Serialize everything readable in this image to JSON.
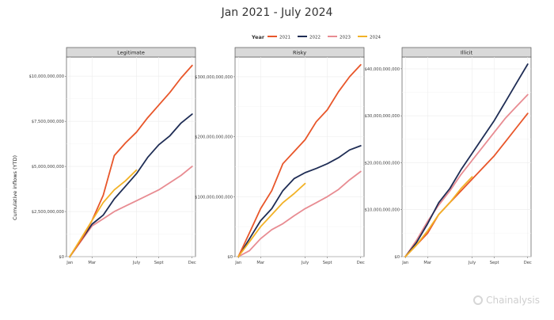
{
  "title": "Jan 2021 - July 2024",
  "legend": {
    "title": "Year",
    "placement": "top",
    "items": [
      {
        "label": "2021",
        "color": "#e8562a"
      },
      {
        "label": "2022",
        "color": "#1f2d55"
      },
      {
        "label": "2023",
        "color": "#e88c92"
      },
      {
        "label": "2024",
        "color": "#f2b227"
      }
    ]
  },
  "ylabel": "Cumulative inflows (YTD)",
  "watermark": "Chainalysis",
  "chart_data": [
    {
      "type": "line",
      "panel": "Legitimate",
      "ylabel": "Cumulative inflows (YTD)",
      "ylim": [
        0,
        10800000000
      ],
      "yticks": [
        0,
        2500000000,
        5000000000,
        7500000000,
        10000000000
      ],
      "ytick_labels": [
        "$0",
        "$2,500,000,000",
        "$5,000,000,000",
        "$7,500,000,000",
        "$10,000,000,000"
      ],
      "xticks": [
        1,
        3,
        7,
        9,
        12
      ],
      "xtick_labels": [
        "Jan",
        "Mar",
        "July",
        "Sept",
        "Dec"
      ],
      "grid": true,
      "series": [
        {
          "name": "2021",
          "color": "#e8562a",
          "x": [
            1,
            2,
            3,
            4,
            5,
            6,
            7,
            8,
            9,
            10,
            11,
            12
          ],
          "values": [
            0,
            900000000,
            2000000000,
            3400000000,
            5600000000,
            6300000000,
            6900000000,
            7700000000,
            8400000000,
            9100000000,
            9900000000,
            10600000000
          ]
        },
        {
          "name": "2022",
          "color": "#1f2d55",
          "x": [
            1,
            2,
            3,
            4,
            5,
            6,
            7,
            8,
            9,
            10,
            11,
            12
          ],
          "values": [
            0,
            900000000,
            1800000000,
            2300000000,
            3200000000,
            3900000000,
            4600000000,
            5500000000,
            6200000000,
            6700000000,
            7400000000,
            7900000000
          ]
        },
        {
          "name": "2023",
          "color": "#e88c92",
          "x": [
            1,
            2,
            3,
            4,
            5,
            6,
            7,
            8,
            9,
            10,
            11,
            12
          ],
          "values": [
            0,
            850000000,
            1700000000,
            2100000000,
            2500000000,
            2800000000,
            3100000000,
            3400000000,
            3700000000,
            4100000000,
            4500000000,
            5000000000
          ]
        },
        {
          "name": "2024",
          "color": "#f2b227",
          "x": [
            1,
            2,
            3,
            4,
            5,
            6,
            7
          ],
          "values": [
            0,
            1000000000,
            2000000000,
            3000000000,
            3700000000,
            4200000000,
            4800000000
          ]
        }
      ]
    },
    {
      "type": "line",
      "panel": "Risky",
      "ylabel": "Cumulative inflows (YTD)",
      "ylim": [
        0,
        325000000000
      ],
      "yticks": [
        0,
        100000000000,
        200000000000,
        300000000000
      ],
      "ytick_labels": [
        "$0",
        "$100,000,000,000",
        "$200,000,000,000",
        "$300,000,000,000"
      ],
      "xticks": [
        1,
        3,
        7,
        9,
        12
      ],
      "xtick_labels": [
        "Jan",
        "Mar",
        "July",
        "Sept",
        "Dec"
      ],
      "grid": true,
      "series": [
        {
          "name": "2021",
          "color": "#e8562a",
          "x": [
            1,
            2,
            3,
            4,
            5,
            6,
            7,
            8,
            9,
            10,
            11,
            12
          ],
          "values": [
            0,
            40000000000,
            80000000000,
            110000000000,
            155000000000,
            175000000000,
            195000000000,
            225000000000,
            245000000000,
            275000000000,
            300000000000,
            320000000000
          ]
        },
        {
          "name": "2022",
          "color": "#1f2d55",
          "x": [
            1,
            2,
            3,
            4,
            5,
            6,
            7,
            8,
            9,
            10,
            11,
            12
          ],
          "values": [
            0,
            30000000000,
            60000000000,
            80000000000,
            110000000000,
            130000000000,
            140000000000,
            147000000000,
            155000000000,
            165000000000,
            178000000000,
            185000000000
          ]
        },
        {
          "name": "2023",
          "color": "#e88c92",
          "x": [
            1,
            2,
            3,
            4,
            5,
            6,
            7,
            8,
            9,
            10,
            11,
            12
          ],
          "values": [
            0,
            10000000000,
            30000000000,
            45000000000,
            55000000000,
            68000000000,
            80000000000,
            90000000000,
            100000000000,
            112000000000,
            128000000000,
            142000000000
          ]
        },
        {
          "name": "2024",
          "color": "#f2b227",
          "x": [
            1,
            2,
            3,
            4,
            5,
            6,
            7
          ],
          "values": [
            0,
            25000000000,
            50000000000,
            70000000000,
            90000000000,
            105000000000,
            122000000000
          ]
        }
      ]
    },
    {
      "type": "line",
      "panel": "Illicit",
      "ylabel": "Cumulative inflows (YTD)",
      "ylim": [
        0,
        41500000000
      ],
      "yticks": [
        0,
        10000000000,
        20000000000,
        30000000000,
        40000000000
      ],
      "ytick_labels": [
        "$0",
        "$10,000,000,000",
        "$20,000,000,000",
        "$30,000,000,000",
        "$40,000,000,000"
      ],
      "xticks": [
        1,
        3,
        7,
        9,
        12
      ],
      "xtick_labels": [
        "Jan",
        "Mar",
        "July",
        "Sept",
        "Dec"
      ],
      "grid": true,
      "series": [
        {
          "name": "2021",
          "color": "#e8562a",
          "x": [
            1,
            2,
            3,
            4,
            5,
            6,
            7,
            8,
            9,
            10,
            11,
            12
          ],
          "values": [
            0,
            2500000000,
            5000000000,
            9000000000,
            11500000000,
            14000000000,
            16500000000,
            19000000000,
            21500000000,
            24500000000,
            27500000000,
            30500000000
          ]
        },
        {
          "name": "2022",
          "color": "#1f2d55",
          "x": [
            1,
            2,
            3,
            4,
            5,
            6,
            7,
            8,
            9,
            10,
            11,
            12
          ],
          "values": [
            0,
            3000000000,
            7000000000,
            11500000000,
            14500000000,
            18500000000,
            22000000000,
            25500000000,
            29000000000,
            33000000000,
            37000000000,
            41000000000
          ]
        },
        {
          "name": "2023",
          "color": "#e88c92",
          "x": [
            1,
            2,
            3,
            4,
            5,
            6,
            7,
            8,
            9,
            10,
            11,
            12
          ],
          "values": [
            0,
            3500000000,
            7500000000,
            11000000000,
            14000000000,
            17500000000,
            20500000000,
            23500000000,
            26500000000,
            29500000000,
            32000000000,
            34500000000
          ]
        },
        {
          "name": "2024",
          "color": "#f2b227",
          "x": [
            1,
            2,
            3,
            4,
            5,
            6,
            7
          ],
          "values": [
            0,
            2500000000,
            5500000000,
            9000000000,
            11500000000,
            14500000000,
            17000000000
          ]
        }
      ]
    }
  ]
}
